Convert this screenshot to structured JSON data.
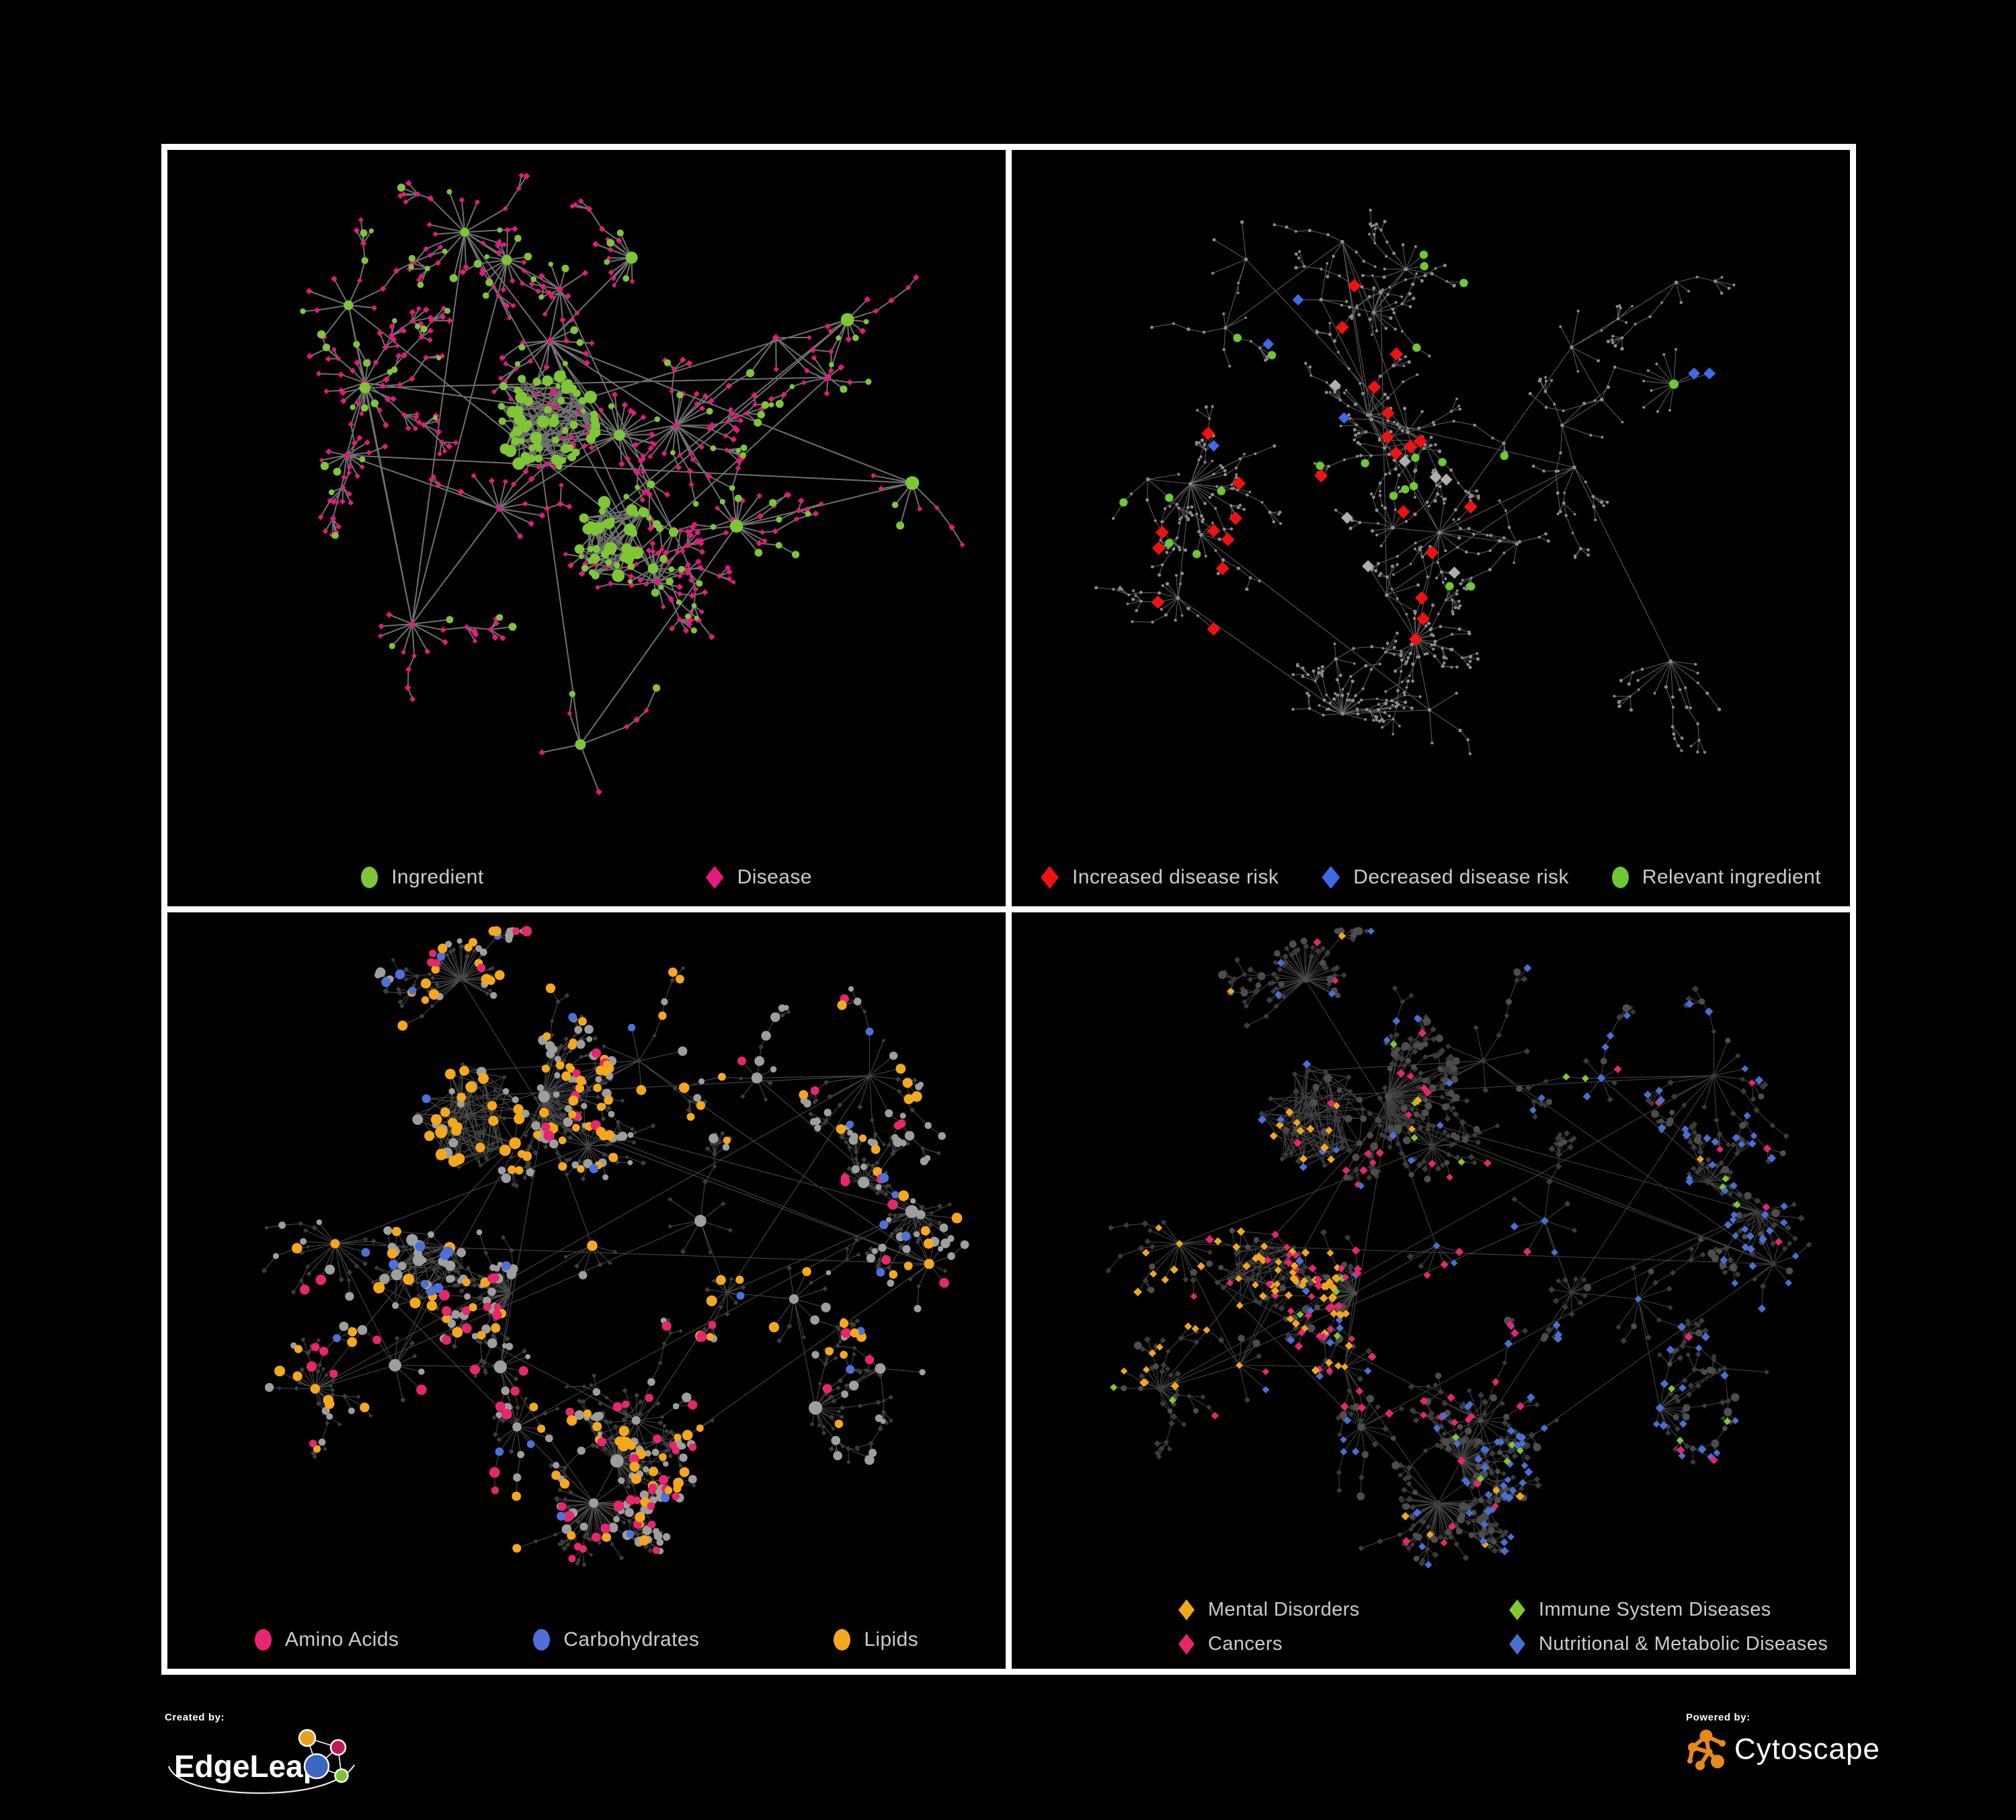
{
  "figure": {
    "background": "#000000",
    "frame_color": "#ffffff"
  },
  "branding": {
    "created_by_label": "Created by:",
    "created_by_name": "EdgeLeap",
    "powered_by_label": "Powered by:",
    "powered_by_name": "Cytoscape",
    "cytoscape_orange": "#E8891C",
    "edgeleap_node_colors": [
      "#E8A020",
      "#C2185B",
      "#3A66C4",
      "#7DC52F"
    ]
  },
  "panels": [
    {
      "id": "ingredient-disease-network",
      "legend": [
        {
          "label": "Ingredient",
          "shape": "circle",
          "color": "#7EC636"
        },
        {
          "label": "Disease",
          "shape": "diamond",
          "color": "#E6197E"
        }
      ]
    },
    {
      "id": "disease-risk-network",
      "legend": [
        {
          "label": "Increased disease risk",
          "shape": "diamond",
          "color": "#EE1212"
        },
        {
          "label": "Decreased disease risk",
          "shape": "diamond",
          "color": "#3D6BE8"
        },
        {
          "label": "Relevant ingredient",
          "shape": "circle",
          "color": "#6DC832"
        }
      ]
    },
    {
      "id": "nutrient-class-network",
      "legend": [
        {
          "label": "Amino Acids",
          "shape": "circle",
          "color": "#E8256F"
        },
        {
          "label": "Carbohydrates",
          "shape": "circle",
          "color": "#4E71D9"
        },
        {
          "label": "Lipids",
          "shape": "circle",
          "color": "#F5A81C"
        }
      ]
    },
    {
      "id": "disease-class-network",
      "legend": [
        {
          "label": "Mental Disorders",
          "shape": "diamond",
          "color": "#F2A71B"
        },
        {
          "label": "Immune System Diseases",
          "shape": "diamond",
          "color": "#82C830"
        },
        {
          "label": "Cancers",
          "shape": "diamond",
          "color": "#E8256F"
        },
        {
          "label": "Nutritional & Metabolic Diseases",
          "shape": "diamond",
          "color": "#4A6FD4"
        }
      ]
    }
  ],
  "network_style": {
    "edge_color_p1": "#7A7A7A",
    "edge_color_p2": "#6E6E6E",
    "edge_color_bottom": "#949494",
    "base_dot_p2": "#8C8C8C",
    "neutral_diamond_p2": "#AFAFAF",
    "base_diamond_p3": "#3D3D3D",
    "base_circle_p3": "#9E9E9E",
    "base_diamond_p4": "#3B3B3B",
    "base_circle_p4": "#4D4D4D",
    "increased_count": 26,
    "decreased_count": 6,
    "neutral_count": 7,
    "relevant_ingredient_count": 21
  }
}
